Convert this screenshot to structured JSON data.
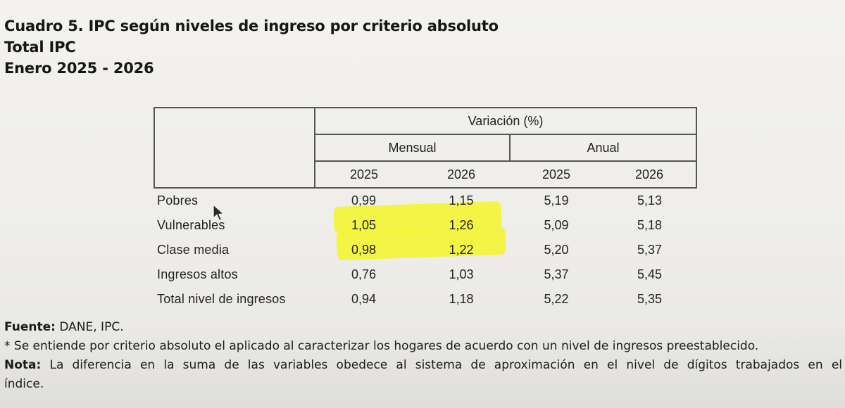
{
  "title": {
    "line1": "Cuadro 5. IPC según niveles de ingreso por criterio absoluto",
    "line2": "Total IPC",
    "line3": "Enero 2025 - 2026"
  },
  "table": {
    "header_top": "Variación (%)",
    "group_monthly": "Mensual",
    "group_annual": "Anual",
    "years": [
      "2025",
      "2026",
      "2025",
      "2026"
    ],
    "rows": [
      {
        "label": "Pobres",
        "values": [
          "0,99",
          "1,15",
          "5,19",
          "5,13"
        ]
      },
      {
        "label": "Vulnerables",
        "values": [
          "1,05",
          "1,26",
          "5,09",
          "5,18"
        ]
      },
      {
        "label": "Clase media",
        "values": [
          "0,98",
          "1,22",
          "5,20",
          "5,37"
        ]
      },
      {
        "label": "Ingresos altos",
        "values": [
          "0,76",
          "1,03",
          "5,37",
          "5,45"
        ]
      },
      {
        "label": "Total nivel de ingresos",
        "values": [
          "0,94",
          "1,18",
          "5,22",
          "5,35"
        ]
      }
    ],
    "highlight_color": "#f4f42a"
  },
  "footer": {
    "source_label": "Fuente:",
    "source_text": " DANE, IPC.",
    "asterisk_note": "* Se entiende por criterio absoluto el aplicado al caracterizar los hogares de acuerdo con un nivel de ingresos preestablecido.",
    "note_label": "Nota:",
    "note_text_1": " La diferencia en la suma de las variables obedece al sistema de aproximación en el nivel de dígitos trabajados en el",
    "note_text_2": "índice."
  }
}
